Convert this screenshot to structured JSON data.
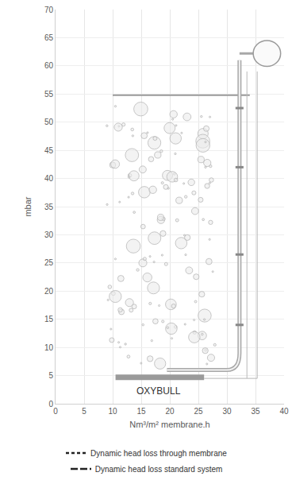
{
  "chart_data": {
    "type": "line",
    "x_label": "Nm³/m² membrane.h",
    "y_label": "mbar",
    "xlim": [
      0,
      40
    ],
    "xticks": [
      0,
      5,
      10,
      15,
      20,
      25,
      30,
      35,
      40
    ],
    "ylim": [
      0,
      70
    ],
    "yticks": [
      0,
      5,
      10,
      15,
      20,
      25,
      30,
      35,
      40,
      45,
      50,
      55,
      60,
      65,
      70
    ],
    "grid": true,
    "legend": "bottom",
    "annotations": [
      "OXYBULL"
    ],
    "x": [],
    "series": [
      {
        "name": "Dynamic head loss through membrane",
        "color": "#222222",
        "line_style": "dashed",
        "values": []
      },
      {
        "name": "Dynamic head loss standard system",
        "color": "#222222",
        "line_style": "longdash",
        "values": []
      }
    ]
  }
}
